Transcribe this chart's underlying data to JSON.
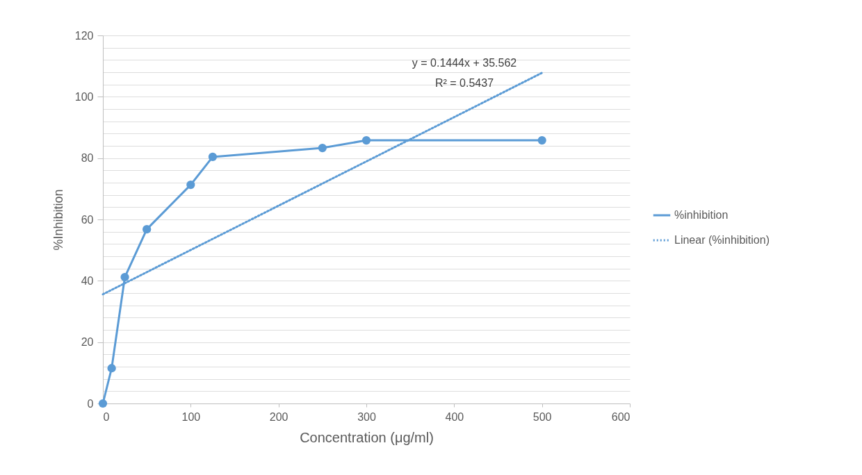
{
  "chart_data": {
    "type": "line",
    "xlabel": "Concentration (μg/ml)",
    "ylabel": "%Inhibition",
    "xlim": [
      0,
      600
    ],
    "xticks": [
      0,
      100,
      200,
      300,
      400,
      500,
      600
    ],
    "ylim": [
      0,
      120
    ],
    "yticks": [
      0,
      {
        "value": 4,
        "label": null
      },
      {
        "value": 8,
        "label": null
      },
      {
        "value": 12,
        "label": null
      },
      {
        "value": 16,
        "label": null
      },
      20,
      {
        "value": 24,
        "label": null
      },
      {
        "value": 28,
        "label": null
      },
      {
        "value": 32,
        "label": null
      },
      {
        "value": 36,
        "label": null
      },
      40,
      {
        "value": 44,
        "label": null
      },
      {
        "value": 48,
        "label": null
      },
      {
        "value": 52,
        "label": null
      },
      {
        "value": 56,
        "label": null
      },
      60,
      {
        "value": 64,
        "label": null
      },
      {
        "value": 68,
        "label": null
      },
      {
        "value": 72,
        "label": null
      },
      {
        "value": 76,
        "label": null
      },
      80,
      {
        "value": 84,
        "label": null
      },
      {
        "value": 88,
        "label": null
      },
      {
        "value": 92,
        "label": null
      },
      {
        "value": 96,
        "label": null
      },
      100,
      {
        "value": 104,
        "label": null
      },
      {
        "value": 108,
        "label": null
      },
      {
        "value": 112,
        "label": null
      },
      {
        "value": 116,
        "label": null
      },
      120
    ],
    "grid": "y",
    "legend": "right",
    "annotations": [
      "y = 0.1444x + 35.562",
      "R² = 0.5437"
    ],
    "series": [
      {
        "name": "%inhibition",
        "color": "#5b9bd5",
        "marker": "circle",
        "line_style": "solid",
        "x": [
          0,
          10,
          25,
          50,
          100,
          125,
          250,
          300,
          500
        ],
        "values": [
          0,
          11.5,
          41.2,
          56.8,
          71.3,
          80.4,
          83.3,
          85.8,
          85.8
        ]
      },
      {
        "name": "Linear (%inhibition)",
        "color": "#5b9bd5",
        "marker": "none",
        "line_style": "dotted",
        "x": [
          0,
          500
        ],
        "values": [
          35.6,
          107.8
        ]
      }
    ]
  }
}
